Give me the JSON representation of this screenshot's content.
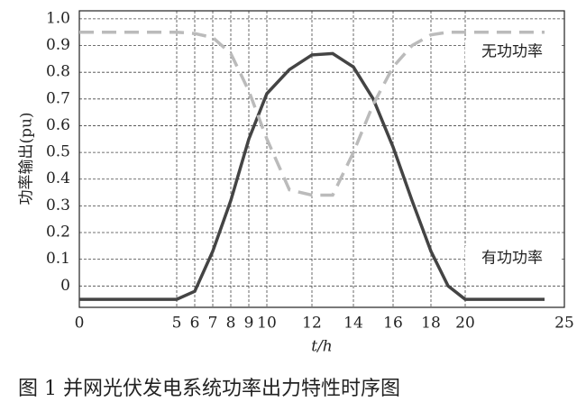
{
  "chart_data": {
    "type": "line",
    "xlabel": "t/h",
    "ylabel": "功率输出(pu)",
    "caption": "图 1   并网光伏发电系统功率出力特性时序图",
    "xlim": [
      0,
      25
    ],
    "xticks": [
      0,
      5,
      6,
      7,
      8,
      9,
      10,
      12,
      14,
      16,
      18,
      20,
      25
    ],
    "ylim": [
      -0.08,
      1.03
    ],
    "yticks": [
      {
        "value": 1,
        "label": "1.0"
      },
      0.9,
      0.8,
      0.7,
      0.6,
      0.5,
      0.4,
      0.3,
      0.2,
      0.1,
      0
    ],
    "grid": true,
    "x": [
      0,
      5,
      6,
      7,
      8,
      9,
      10,
      11,
      12,
      13,
      14,
      15,
      16,
      17,
      18,
      19,
      20,
      24
    ],
    "series": [
      {
        "name": "有功功率",
        "color": "#444444",
        "style": "solid",
        "values": [
          -0.05,
          -0.05,
          -0.02,
          0.13,
          0.32,
          0.55,
          0.72,
          0.81,
          0.865,
          0.87,
          0.82,
          0.7,
          0.52,
          0.32,
          0.13,
          0,
          -0.05,
          -0.05
        ]
      },
      {
        "name": "无功功率",
        "color": "#bbbbbb",
        "style": "dashed",
        "values": [
          0.95,
          0.95,
          0.945,
          0.93,
          0.87,
          0.73,
          0.55,
          0.36,
          0.34,
          0.34,
          0.5,
          0.68,
          0.82,
          0.9,
          0.94,
          0.95,
          0.95,
          0.95
        ]
      }
    ]
  }
}
